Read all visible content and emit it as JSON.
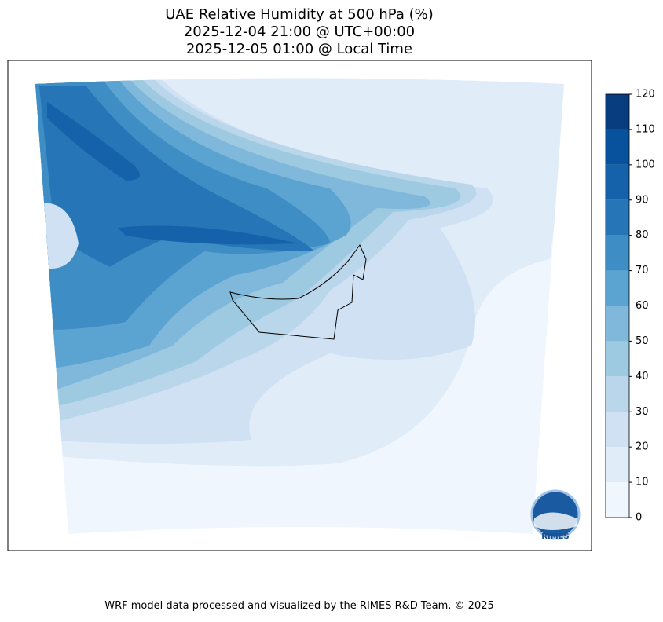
{
  "title": [
    "UAE Relative Humidity at 500 hPa (%)",
    "2025-12-04 21:00 @ UTC+00:00",
    "2025-12-05 01:00 @ Local Time"
  ],
  "colorbar": {
    "ticks": [
      0,
      10,
      20,
      30,
      40,
      50,
      60,
      70,
      80,
      90,
      100,
      110,
      120
    ],
    "colors": [
      "#f0f6fd",
      "#e0ecf7",
      "#cfe1f2",
      "#b9d6eb",
      "#9ecae1",
      "#7fb8da",
      "#5ba3d0",
      "#3f8dc5",
      "#2575b7",
      "#1562aa",
      "#08519c",
      "#083d7f"
    ]
  },
  "logo": "RIMES",
  "footer": "WRF model data processed and visualized by the RIMES R&D Team. © 2025"
}
